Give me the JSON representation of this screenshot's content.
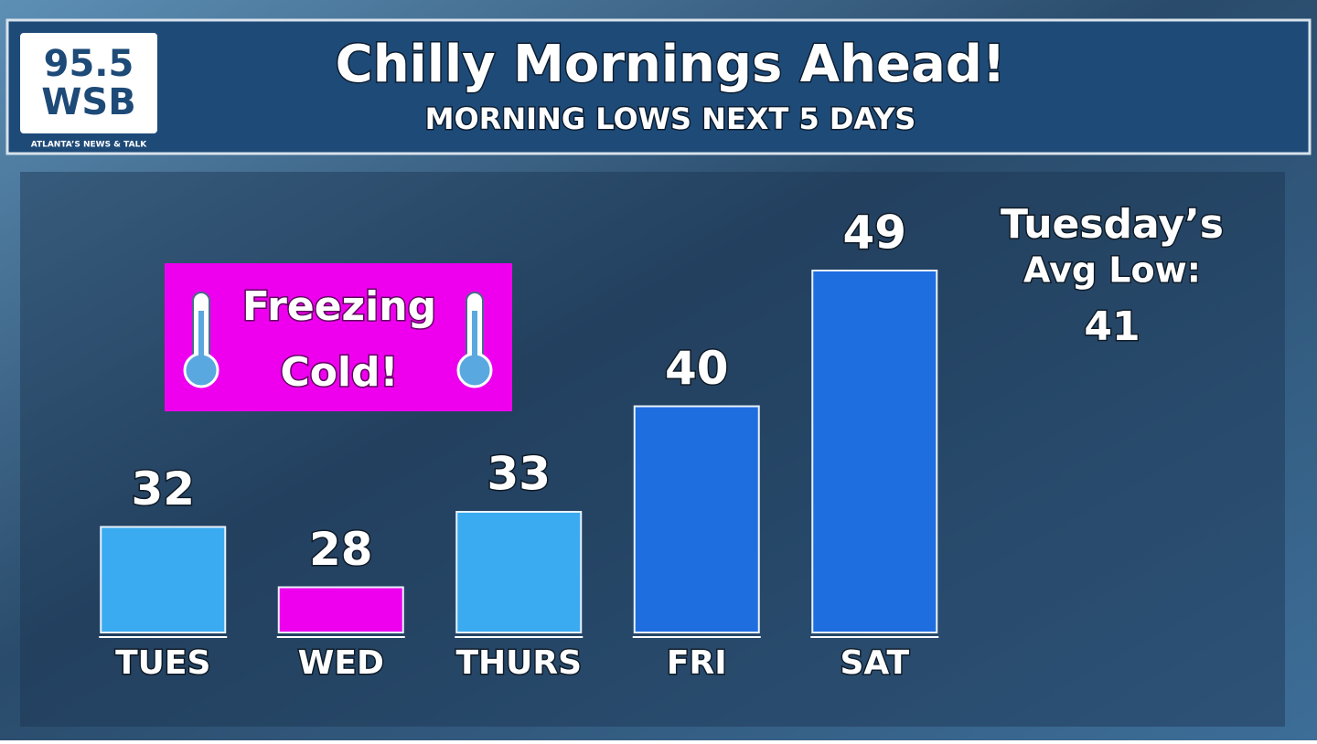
{
  "brand": {
    "number": "95.5",
    "name": "WSB",
    "tagline": "ATLANTA’S NEWS & TALK"
  },
  "chart_data": {
    "type": "bar",
    "title": "Chilly Mornings Ahead!",
    "subtitle": "MORNING LOWS NEXT 5 DAYS",
    "categories": [
      "TUES",
      "WED",
      "THURS",
      "FRI",
      "SAT"
    ],
    "values": [
      32,
      28,
      33,
      40,
      49
    ],
    "colors": [
      "#3aabf0",
      "#ee00ee",
      "#3aabf0",
      "#1f6ee0",
      "#1f6ee0"
    ],
    "ylim": [
      25,
      50
    ],
    "annotation": {
      "lines": [
        "Freezing",
        "Cold!"
      ],
      "color": "#ee00ee"
    },
    "avg_low": {
      "lines": [
        "Tuesday’s",
        "Avg Low:"
      ],
      "value": 41
    }
  }
}
